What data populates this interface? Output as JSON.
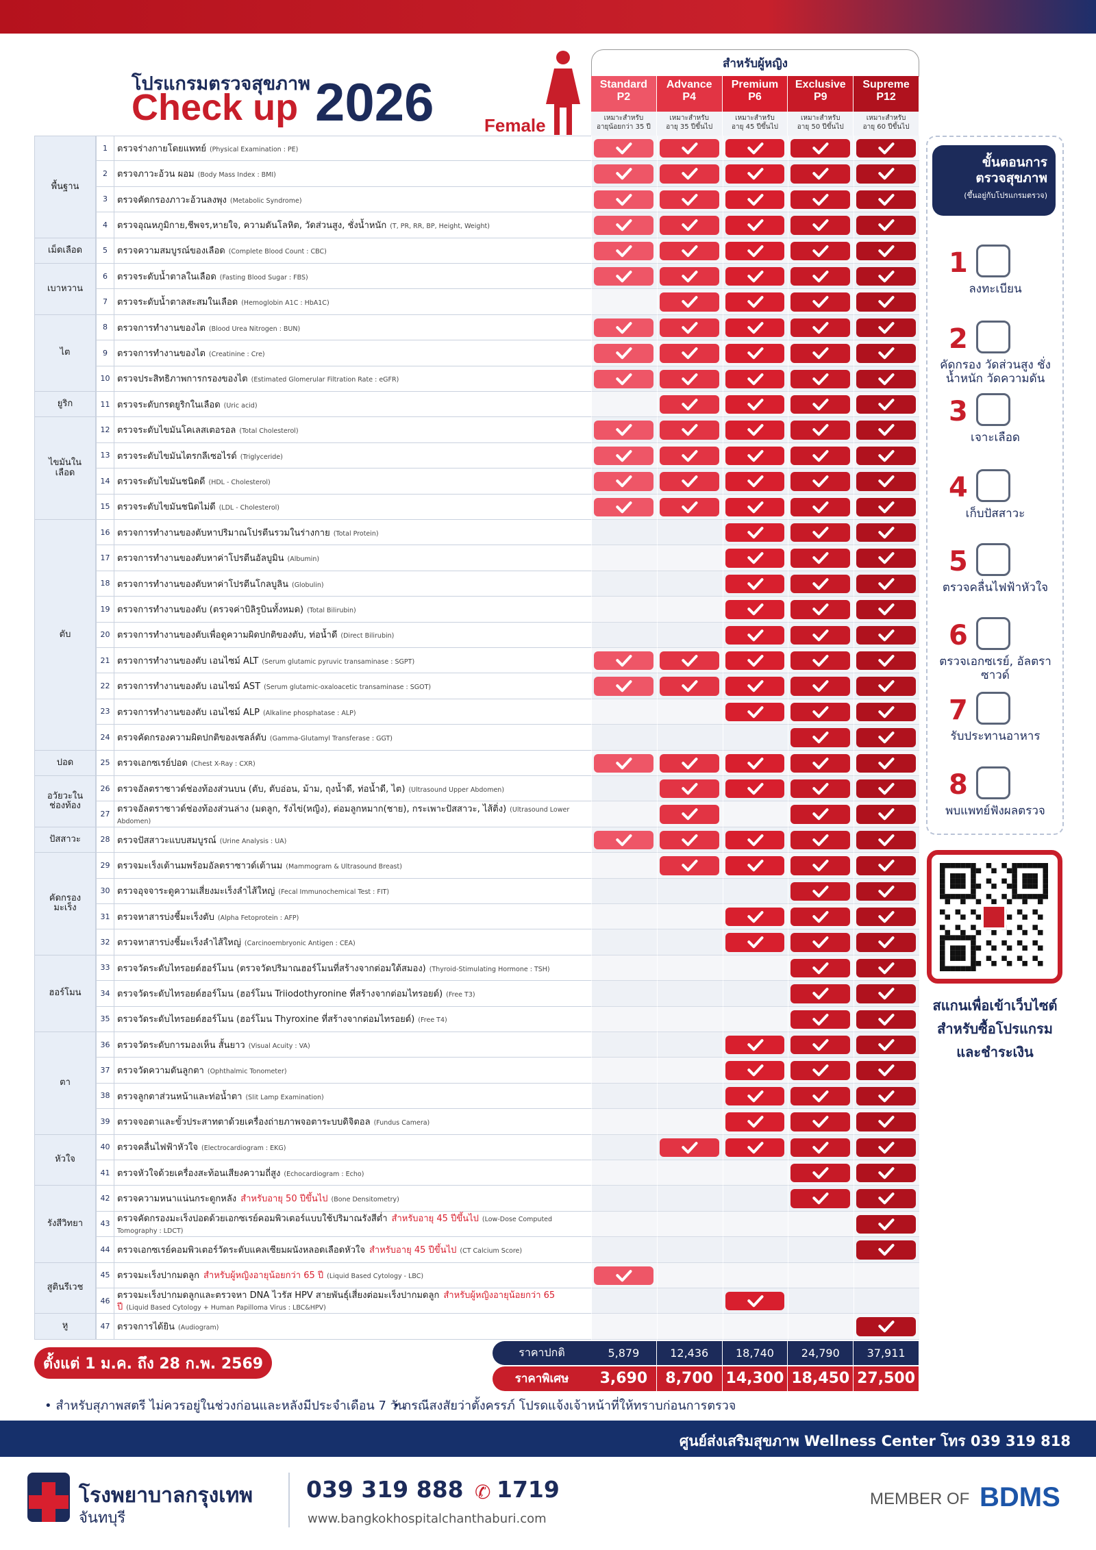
{
  "header": {
    "program": "โปรแกรมตรวจสุขภาพ",
    "title": "Check up",
    "year": "2026",
    "gender": "Female",
    "for_women": "สำหรับผู้หญิง"
  },
  "packages": [
    {
      "name": "Standard",
      "code": "P2",
      "fit": "เหมาะสำหรับ",
      "age": "อายุน้อยกว่า 35 ปี",
      "color": "#ee5667",
      "normal": "5,879",
      "special": "3,690"
    },
    {
      "name": "Advance",
      "code": "P4",
      "fit": "เหมาะสำหรับ",
      "age": "อายุ 35 ปีขึ้นไป",
      "color": "#e23444",
      "normal": "12,436",
      "special": "8,700"
    },
    {
      "name": "Premium",
      "code": "P6",
      "fit": "เหมาะสำหรับ",
      "age": "อายุ 45 ปีขึ้นไป",
      "color": "#d81f2e",
      "normal": "18,740",
      "special": "14,300"
    },
    {
      "name": "Exclusive",
      "code": "P9",
      "fit": "เหมาะสำหรับ",
      "age": "อายุ 50 ปีขึ้นไป",
      "color": "#c71a27",
      "normal": "24,790",
      "special": "18,450"
    },
    {
      "name": "Supreme",
      "code": "P12",
      "fit": "เหมาะสำหรับ",
      "age": "อายุ 60 ปีขึ้นไป",
      "color": "#b0121e",
      "normal": "37,911",
      "special": "27,500"
    }
  ],
  "groups": [
    {
      "name": "พื้นฐาน",
      "rows": [
        {
          "no": 1,
          "th": "ตรวจร่างกายโดยแพทย์",
          "en": "(Physical  Examination : PE)",
          "checks": [
            true,
            true,
            true,
            true,
            true
          ]
        },
        {
          "no": 2,
          "th": "ตรวจภาวะอ้วน ผอม",
          "en": "(Body Mass Index : BMI)",
          "checks": [
            true,
            true,
            true,
            true,
            true
          ]
        },
        {
          "no": 3,
          "th": "ตรวจคัดกรองภาวะอ้วนลงพุง",
          "en": "(Metabolic Syndrome)",
          "checks": [
            true,
            true,
            true,
            true,
            true
          ]
        },
        {
          "no": 4,
          "th": "ตรวจอุณหภูมิกาย,ชีพจร,หายใจ, ความดันโลหิต, วัดส่วนสูง, ชั่งน้ำหนัก",
          "en": "(T, PR, RR, BP, Height, Weight)",
          "checks": [
            true,
            true,
            true,
            true,
            true
          ]
        }
      ]
    },
    {
      "name": "เม็ดเลือด",
      "rows": [
        {
          "no": 5,
          "th": "ตรวจความสมบูรณ์ของเลือด",
          "en": "(Complete Blood Count : CBC)",
          "checks": [
            true,
            true,
            true,
            true,
            true
          ]
        }
      ]
    },
    {
      "name": "เบาหวาน",
      "rows": [
        {
          "no": 6,
          "th": "ตรวจระดับน้ำตาลในเลือด",
          "en": "(Fasting Blood Sugar : FBS)",
          "checks": [
            true,
            true,
            true,
            true,
            true
          ]
        },
        {
          "no": 7,
          "th": "ตรวจระดับน้ำตาลสะสมในเลือด",
          "en": "(Hemoglobin A1C : HbA1C)",
          "checks": [
            false,
            true,
            true,
            true,
            true
          ]
        }
      ]
    },
    {
      "name": "ไต",
      "rows": [
        {
          "no": 8,
          "th": "ตรวจการทำงานของไต",
          "en": "(Blood Urea Nitrogen : BUN)",
          "checks": [
            true,
            true,
            true,
            true,
            true
          ]
        },
        {
          "no": 9,
          "th": "ตรวจการทำงานของไต",
          "en": "(Creatinine : Cre)",
          "checks": [
            true,
            true,
            true,
            true,
            true
          ]
        },
        {
          "no": 10,
          "th": "ตรวจประสิทธิภาพการกรองของไต",
          "en": "(Estimated Glomerular Filtration Rate : eGFR)",
          "checks": [
            true,
            true,
            true,
            true,
            true
          ]
        }
      ]
    },
    {
      "name": "ยูริก",
      "rows": [
        {
          "no": 11,
          "th": "ตรวจระดับกรดยูริกในเลือด",
          "en": "(Uric acid)",
          "checks": [
            false,
            true,
            true,
            true,
            true
          ]
        }
      ]
    },
    {
      "name": "ไขมันในเลือด",
      "rows": [
        {
          "no": 12,
          "th": "ตรวจระดับไขมันโคเลสเตอรอล",
          "en": "(Total Cholesterol)",
          "checks": [
            true,
            true,
            true,
            true,
            true
          ]
        },
        {
          "no": 13,
          "th": "ตรวจระดับไขมันไตรกลีเซอไรด์",
          "en": "(Triglyceride)",
          "checks": [
            true,
            true,
            true,
            true,
            true
          ]
        },
        {
          "no": 14,
          "th": "ตรวจระดับไขมันชนิดดี",
          "en": "(HDL - Cholesterol)",
          "checks": [
            true,
            true,
            true,
            true,
            true
          ]
        },
        {
          "no": 15,
          "th": "ตรวจระดับไขมันชนิดไม่ดี",
          "en": "(LDL - Cholesterol)",
          "checks": [
            true,
            true,
            true,
            true,
            true
          ]
        }
      ]
    },
    {
      "name": "ตับ",
      "rows": [
        {
          "no": 16,
          "th": "ตรวจการทำงานของตับหาปริมาณโปรตีนรวมในร่างกาย",
          "en": "(Total Protein)",
          "checks": [
            false,
            false,
            true,
            true,
            true
          ]
        },
        {
          "no": 17,
          "th": "ตรวจการทำงานของตับหาค่าโปรตีนอัลบูมิน",
          "en": "(Albumin)",
          "checks": [
            false,
            false,
            true,
            true,
            true
          ]
        },
        {
          "no": 18,
          "th": "ตรวจการทำงานของตับหาค่าโปรตีนโกลบูลิน",
          "en": "(Globulin)",
          "checks": [
            false,
            false,
            true,
            true,
            true
          ]
        },
        {
          "no": 19,
          "th": "ตรวจการทำงานของตับ (ตรวจค่าบิลิรูบินทั้งหมด)",
          "en": "(Total Bilirubin)",
          "checks": [
            false,
            false,
            true,
            true,
            true
          ]
        },
        {
          "no": 20,
          "th": "ตรวจการทำงานของตับเพื่อดูความผิดปกติของตับ, ท่อน้ำดี",
          "en": "(Direct Bilirubin)",
          "checks": [
            false,
            false,
            true,
            true,
            true
          ]
        },
        {
          "no": 21,
          "th": "ตรวจการทำงานของตับ เอนไซม์ ALT",
          "en": "(Serum glutamic pyruvic transaminase : SGPT)",
          "checks": [
            true,
            true,
            true,
            true,
            true
          ]
        },
        {
          "no": 22,
          "th": "ตรวจการทำงานของตับ เอนไซม์ AST",
          "en": "(Serum glutamic-oxaloacetic transaminase : SGOT)",
          "checks": [
            true,
            true,
            true,
            true,
            true
          ]
        },
        {
          "no": 23,
          "th": "ตรวจการทำงานของตับ เอนไซม์ ALP",
          "en": "(Alkaline phosphatase : ALP)",
          "checks": [
            false,
            false,
            true,
            true,
            true
          ]
        },
        {
          "no": 24,
          "th": "ตรวจคัดกรองความผิดปกติของเซลล์ตับ",
          "en": "(Gamma-Glutamyl Transferase : GGT)",
          "checks": [
            false,
            false,
            false,
            true,
            true
          ]
        }
      ]
    },
    {
      "name": "ปอด",
      "rows": [
        {
          "no": 25,
          "th": "ตรวจเอกซเรย์ปอด",
          "en": "(Chest X-Ray : CXR)",
          "checks": [
            true,
            true,
            true,
            true,
            true
          ]
        }
      ]
    },
    {
      "name": "อวัยวะในช่องท้อง",
      "rows": [
        {
          "no": 26,
          "th": "ตรวจอัลตราซาวด์ช่องท้องส่วนบน (ตับ, ตับอ่อน, ม้าม, ถุงน้ำดี, ท่อน้ำดี, ไต)",
          "en": "(Ultrasound Upper Abdomen)",
          "checks": [
            false,
            true,
            true,
            true,
            true
          ]
        },
        {
          "no": 27,
          "th": "ตรวจอัลตราซาวด์ช่องท้องส่วนล่าง (มดลูก, รังไข่(หญิง), ต่อมลูกหมาก(ชาย), กระเพาะปัสสาวะ, ไส้ติ่ง)",
          "en": "(Ultrasound Lower Abdomen)",
          "checks": [
            false,
            true,
            false,
            true,
            true
          ]
        }
      ]
    },
    {
      "name": "ปัสสาวะ",
      "rows": [
        {
          "no": 28,
          "th": "ตรวจปัสสาวะแบบสมบูรณ์",
          "en": "(Urine Analysis : UA)",
          "checks": [
            true,
            true,
            true,
            true,
            true
          ]
        }
      ]
    },
    {
      "name": "คัดกรองมะเร็ง",
      "rows": [
        {
          "no": 29,
          "th": "ตรวจมะเร็งเต้านมพร้อมอัลตราซาวด์เต้านม",
          "en": "(Mammogram & Ultrasound Breast)",
          "checks": [
            false,
            true,
            true,
            true,
            true
          ]
        },
        {
          "no": 30,
          "th": "ตรวจอุจจาระดูความเสี่ยงมะเร็งลำไส้ใหญ่",
          "en": "(Fecal Immunochemical Test : FIT)",
          "checks": [
            false,
            false,
            false,
            true,
            true
          ]
        },
        {
          "no": 31,
          "th": "ตรวจหาสารบ่งชี้มะเร็งตับ",
          "en": "(Alpha Fetoprotein : AFP)",
          "checks": [
            false,
            false,
            true,
            true,
            true
          ]
        },
        {
          "no": 32,
          "th": "ตรวจหาสารบ่งชี้มะเร็งลำไส้ใหญ่",
          "en": "(Carcinoembryonic Antigen : CEA)",
          "checks": [
            false,
            false,
            true,
            true,
            true
          ]
        }
      ]
    },
    {
      "name": "ฮอร์โมน",
      "rows": [
        {
          "no": 33,
          "th": "ตรวจวัดระดับไทรอยด์ฮอร์โมน (ตรวจวัดปริมาณฮอร์โมนที่สร้างจากต่อมใต้สมอง)",
          "en": "(Thyroid-Stimulating Hormone : TSH)",
          "checks": [
            false,
            false,
            false,
            true,
            true
          ]
        },
        {
          "no": 34,
          "th": "ตรวจวัดระดับไทรอยด์ฮอร์โมน (ฮอร์โมน Triiodothyronine ที่สร้างจากต่อมไทรอยด์)",
          "en": "(Free T3)",
          "checks": [
            false,
            false,
            false,
            true,
            true
          ]
        },
        {
          "no": 35,
          "th": "ตรวจวัดระดับไทรอยด์ฮอร์โมน (ฮอร์โมน Thyroxine ที่สร้างจากต่อมไทรอยด์)",
          "en": "(Free T4)",
          "checks": [
            false,
            false,
            false,
            true,
            true
          ]
        }
      ]
    },
    {
      "name": "ตา",
      "rows": [
        {
          "no": 36,
          "th": "ตรวจวัดระดับการมองเห็น สั้นยาว",
          "en": "(Visual Acuity : VA)",
          "checks": [
            false,
            false,
            true,
            true,
            true
          ]
        },
        {
          "no": 37,
          "th": "ตรวจวัดความดันลูกตา",
          "en": "(Ophthalmic Tonometer)",
          "checks": [
            false,
            false,
            true,
            true,
            true
          ]
        },
        {
          "no": 38,
          "th": "ตรวจลูกตาส่วนหน้าและท่อน้ำตา",
          "en": "(Slit Lamp Examination)",
          "checks": [
            false,
            false,
            true,
            true,
            true
          ]
        },
        {
          "no": 39,
          "th": "ตรวจจอตาและขั้วประสาทตาด้วยเครื่องถ่ายภาพจอตาระบบดิจิตอล",
          "en": "(Fundus Camera)",
          "checks": [
            false,
            false,
            true,
            true,
            true
          ]
        }
      ]
    },
    {
      "name": "หัวใจ",
      "rows": [
        {
          "no": 40,
          "th": "ตรวจคลื่นไฟฟ้าหัวใจ",
          "en": "(Electrocardiogram : EKG)",
          "checks": [
            false,
            true,
            true,
            true,
            true
          ]
        },
        {
          "no": 41,
          "th": "ตรวจหัวใจด้วยเครื่องสะท้อนเสียงความถี่สูง",
          "en": "(Echocardiogram : Echo)",
          "checks": [
            false,
            false,
            false,
            true,
            true
          ]
        }
      ]
    },
    {
      "name": "รังสีวิทยา",
      "rows": [
        {
          "no": 42,
          "th": "ตรวจความหนาแน่นกระดูกหลัง",
          "note": "สำหรับอายุ 50 ปีขึ้นไป",
          "en": "(Bone Densitometry)",
          "checks": [
            false,
            false,
            false,
            true,
            true
          ]
        },
        {
          "no": 43,
          "th": "ตรวจคัดกรองมะเร็งปอดด้วยเอกซเรย์คอมพิวเตอร์แบบใช้ปริมาณรังสีต่ำ",
          "note": "สำหรับอายุ 45 ปีขึ้นไป",
          "en": "(Low-Dose Computed Tomography : LDCT)",
          "checks": [
            false,
            false,
            false,
            false,
            true
          ]
        },
        {
          "no": 44,
          "th": "ตรวจเอกซเรย์คอมพิวเตอร์วัดระดับแคลเซียมผนังหลอดเลือดหัวใจ",
          "note": "สำหรับอายุ 45 ปีขึ้นไป",
          "en": "(CT Calcium Score)",
          "checks": [
            false,
            false,
            false,
            false,
            true
          ]
        }
      ]
    },
    {
      "name": "สูตินรีเวช",
      "rows": [
        {
          "no": 45,
          "th": "ตรวจมะเร็งปากมดลูก",
          "note": "สำหรับผู้หญิงอายุน้อยกว่า 65 ปี",
          "en": "(Liquid Based Cytology - LBC)",
          "checks": [
            true,
            false,
            false,
            false,
            false
          ]
        },
        {
          "no": 46,
          "th": "ตรวจมะเร็งปากมดลูกและตรวจหา DNA ไวรัส HPV สายพันธุ์เสี่ยงต่อมะเร็งปากมดลูก",
          "note": "สำหรับผู้หญิงอายุน้อยกว่า 65 ปี",
          "en": "(Liquid Based Cytology + Human Papilloma Virus : LBC&HPV)",
          "checks": [
            false,
            false,
            true,
            false,
            false
          ]
        }
      ]
    },
    {
      "name": "หู",
      "rows": [
        {
          "no": 47,
          "th": "ตรวจการได้ยิน",
          "en": "(Audiogram)",
          "checks": [
            false,
            false,
            false,
            false,
            true
          ]
        }
      ]
    }
  ],
  "prices": {
    "normal_label": "ราคาปกติ",
    "special_label": "ราคาพิเศษ",
    "period": "ตั้งแต่ 1 ม.ค. ถึง 28 ก.พ. 2569"
  },
  "notes": [
    "• สำหรับสุภาพสตรี ไม่ควรอยู่ในช่วงก่อนและหลังมีประจำเดือน 7 วัน",
    "• กรณีสงสัยว่าตั้งครรภ์ โปรดแจ้งเจ้าหน้าที่ให้ทราบก่อนการตรวจ"
  ],
  "steps_panel": {
    "title": "ขั้นตอนการ ตรวจสุขภาพ",
    "subtitle": "(ขึ้นอยู่กับโปรแกรมตรวจ)",
    "steps": [
      {
        "no": "1",
        "label": "ลงทะเบียน"
      },
      {
        "no": "2",
        "label": "คัดกรอง วัดส่วนสูง ชั่งน้ำหนัก วัดความดัน"
      },
      {
        "no": "3",
        "label": "เจาะเลือด"
      },
      {
        "no": "4",
        "label": "เก็บปัสสาวะ"
      },
      {
        "no": "5",
        "label": "ตรวจคลื่นไฟฟ้าหัวใจ"
      },
      {
        "no": "6",
        "label": "ตรวจเอกซเรย์, อัลตราซาวด์"
      },
      {
        "no": "7",
        "label": "รับประทานอาหาร"
      },
      {
        "no": "8",
        "label": "พบแพทย์ฟังผลตรวจ"
      }
    ],
    "qr_caption": [
      "สแกนเพื่อเข้าเว็บไซต์",
      "สำหรับซื้อโปรแกรม",
      "และชำระเงิน"
    ]
  },
  "contact_bar": "ศูนย์ส่งเสริมสุขภาพ Wellness Center โทร 039 319 818",
  "footer": {
    "hospital": "โรงพยาบาลกรุงเทพ",
    "branch": "จันทบุรี",
    "phone": "039 319 888",
    "hotline": "1719",
    "website": "www.bangkokhospitalchanthaburi.com",
    "member": "MEMBER OF",
    "group": "BDMS"
  }
}
